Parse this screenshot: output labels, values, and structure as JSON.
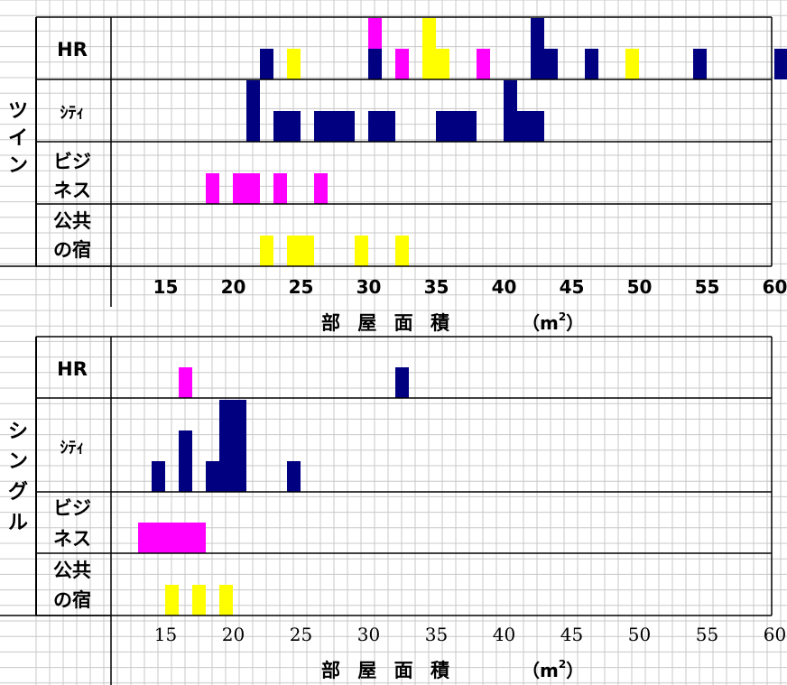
{
  "colors": {
    "hr": "#ff00ff",
    "city": "#000080",
    "business": "#ff00ff",
    "public": "#ffff00",
    "navy": "#000080",
    "magenta": "#ff00ff",
    "yellow": "#ffff00"
  },
  "chart_data": [
    {
      "type": "bar",
      "group_label": "ツイン",
      "xlabel": "部屋面積",
      "xunit": "(m²)",
      "x_ticks": [
        "15",
        "20",
        "25",
        "30",
        "35",
        "40",
        "45",
        "50",
        "55",
        "60"
      ],
      "rows": [
        {
          "label": "HR",
          "bars": [
            {
              "x": 22,
              "count": 1,
              "color": "navy"
            },
            {
              "x": 24,
              "count": 1,
              "color": "yellow"
            },
            {
              "x": 30,
              "count": 1,
              "color": "navy"
            },
            {
              "x": 30,
              "count": 1,
              "color": "magenta",
              "stack": 1
            },
            {
              "x": 32,
              "count": 1,
              "color": "magenta"
            },
            {
              "x": 34,
              "count": 2,
              "color": "yellow"
            },
            {
              "x": 35,
              "count": 1,
              "color": "yellow"
            },
            {
              "x": 38,
              "count": 1,
              "color": "magenta"
            },
            {
              "x": 42,
              "count": 2,
              "color": "navy"
            },
            {
              "x": 43,
              "count": 1,
              "color": "navy"
            },
            {
              "x": 46,
              "count": 1,
              "color": "navy"
            },
            {
              "x": 49,
              "count": 1,
              "color": "yellow"
            },
            {
              "x": 54,
              "count": 1,
              "color": "navy"
            },
            {
              "x": 60,
              "count": 1,
              "color": "navy"
            }
          ]
        },
        {
          "label": "ｼﾃｨ",
          "bars": [
            {
              "x": 21,
              "count": 2,
              "color": "navy"
            },
            {
              "x": 23,
              "count": 1,
              "color": "navy"
            },
            {
              "x": 24,
              "count": 1,
              "color": "navy"
            },
            {
              "x": 26,
              "count": 1,
              "color": "navy"
            },
            {
              "x": 27,
              "count": 1,
              "color": "navy"
            },
            {
              "x": 28,
              "count": 1,
              "color": "navy"
            },
            {
              "x": 30,
              "count": 1,
              "color": "navy"
            },
            {
              "x": 31,
              "count": 1,
              "color": "navy"
            },
            {
              "x": 35,
              "count": 1,
              "color": "navy"
            },
            {
              "x": 36,
              "count": 1,
              "color": "navy"
            },
            {
              "x": 37,
              "count": 1,
              "color": "navy"
            },
            {
              "x": 40,
              "count": 2,
              "color": "navy"
            },
            {
              "x": 41,
              "count": 1,
              "color": "navy"
            },
            {
              "x": 42,
              "count": 1,
              "color": "navy"
            }
          ]
        },
        {
          "label": "ビジネス",
          "bars": [
            {
              "x": 18,
              "count": 1,
              "color": "magenta"
            },
            {
              "x": 20,
              "count": 1,
              "color": "magenta"
            },
            {
              "x": 21,
              "count": 1,
              "color": "magenta"
            },
            {
              "x": 23,
              "count": 1,
              "color": "magenta"
            },
            {
              "x": 26,
              "count": 1,
              "color": "magenta"
            }
          ]
        },
        {
          "label": "公共の宿",
          "bars": [
            {
              "x": 22,
              "count": 1,
              "color": "yellow"
            },
            {
              "x": 24,
              "count": 1,
              "color": "yellow"
            },
            {
              "x": 25,
              "count": 1,
              "color": "yellow"
            },
            {
              "x": 29,
              "count": 1,
              "color": "yellow"
            },
            {
              "x": 32,
              "count": 1,
              "color": "yellow"
            }
          ]
        }
      ]
    },
    {
      "type": "bar",
      "group_label": "シングル",
      "xlabel": "部屋面積",
      "xunit": "(m²)",
      "x_ticks": [
        "15",
        "20",
        "25",
        "30",
        "35",
        "40",
        "45",
        "50",
        "55",
        "60"
      ],
      "rows": [
        {
          "label": "HR",
          "bars": [
            {
              "x": 16,
              "count": 1,
              "color": "magenta"
            },
            {
              "x": 32,
              "count": 1,
              "color": "navy"
            }
          ]
        },
        {
          "label": "ｼﾃｨ",
          "bars": [
            {
              "x": 14,
              "count": 1,
              "color": "navy"
            },
            {
              "x": 16,
              "count": 2,
              "color": "navy"
            },
            {
              "x": 18,
              "count": 1,
              "color": "navy"
            },
            {
              "x": 19,
              "count": 3,
              "color": "navy"
            },
            {
              "x": 20,
              "count": 3,
              "color": "navy"
            },
            {
              "x": 24,
              "count": 1,
              "color": "navy"
            }
          ]
        },
        {
          "label": "ビジネス",
          "bars": [
            {
              "x": 13,
              "count": 1,
              "color": "magenta"
            },
            {
              "x": 14,
              "count": 1,
              "color": "magenta"
            },
            {
              "x": 15,
              "count": 1,
              "color": "magenta"
            },
            {
              "x": 16,
              "count": 1,
              "color": "magenta"
            },
            {
              "x": 17,
              "count": 1,
              "color": "magenta"
            }
          ]
        },
        {
          "label": "公共の宿",
          "bars": [
            {
              "x": 15,
              "count": 1,
              "color": "yellow"
            },
            {
              "x": 17,
              "count": 1,
              "color": "yellow"
            },
            {
              "x": 19,
              "count": 1,
              "color": "yellow"
            }
          ]
        }
      ]
    }
  ],
  "labels": {
    "twin_group": "ツイン",
    "single_group": "シングル",
    "row_hr": "HR",
    "row_city": "ｼﾃｨ",
    "row_business_1": "ビジ",
    "row_business_2": "ネス",
    "row_public_1": "公共",
    "row_public_2": "の宿",
    "xlabel": "部 屋 面 積",
    "xunit_open": "（m",
    "xunit_sup": "2",
    "xunit_close": "）"
  }
}
